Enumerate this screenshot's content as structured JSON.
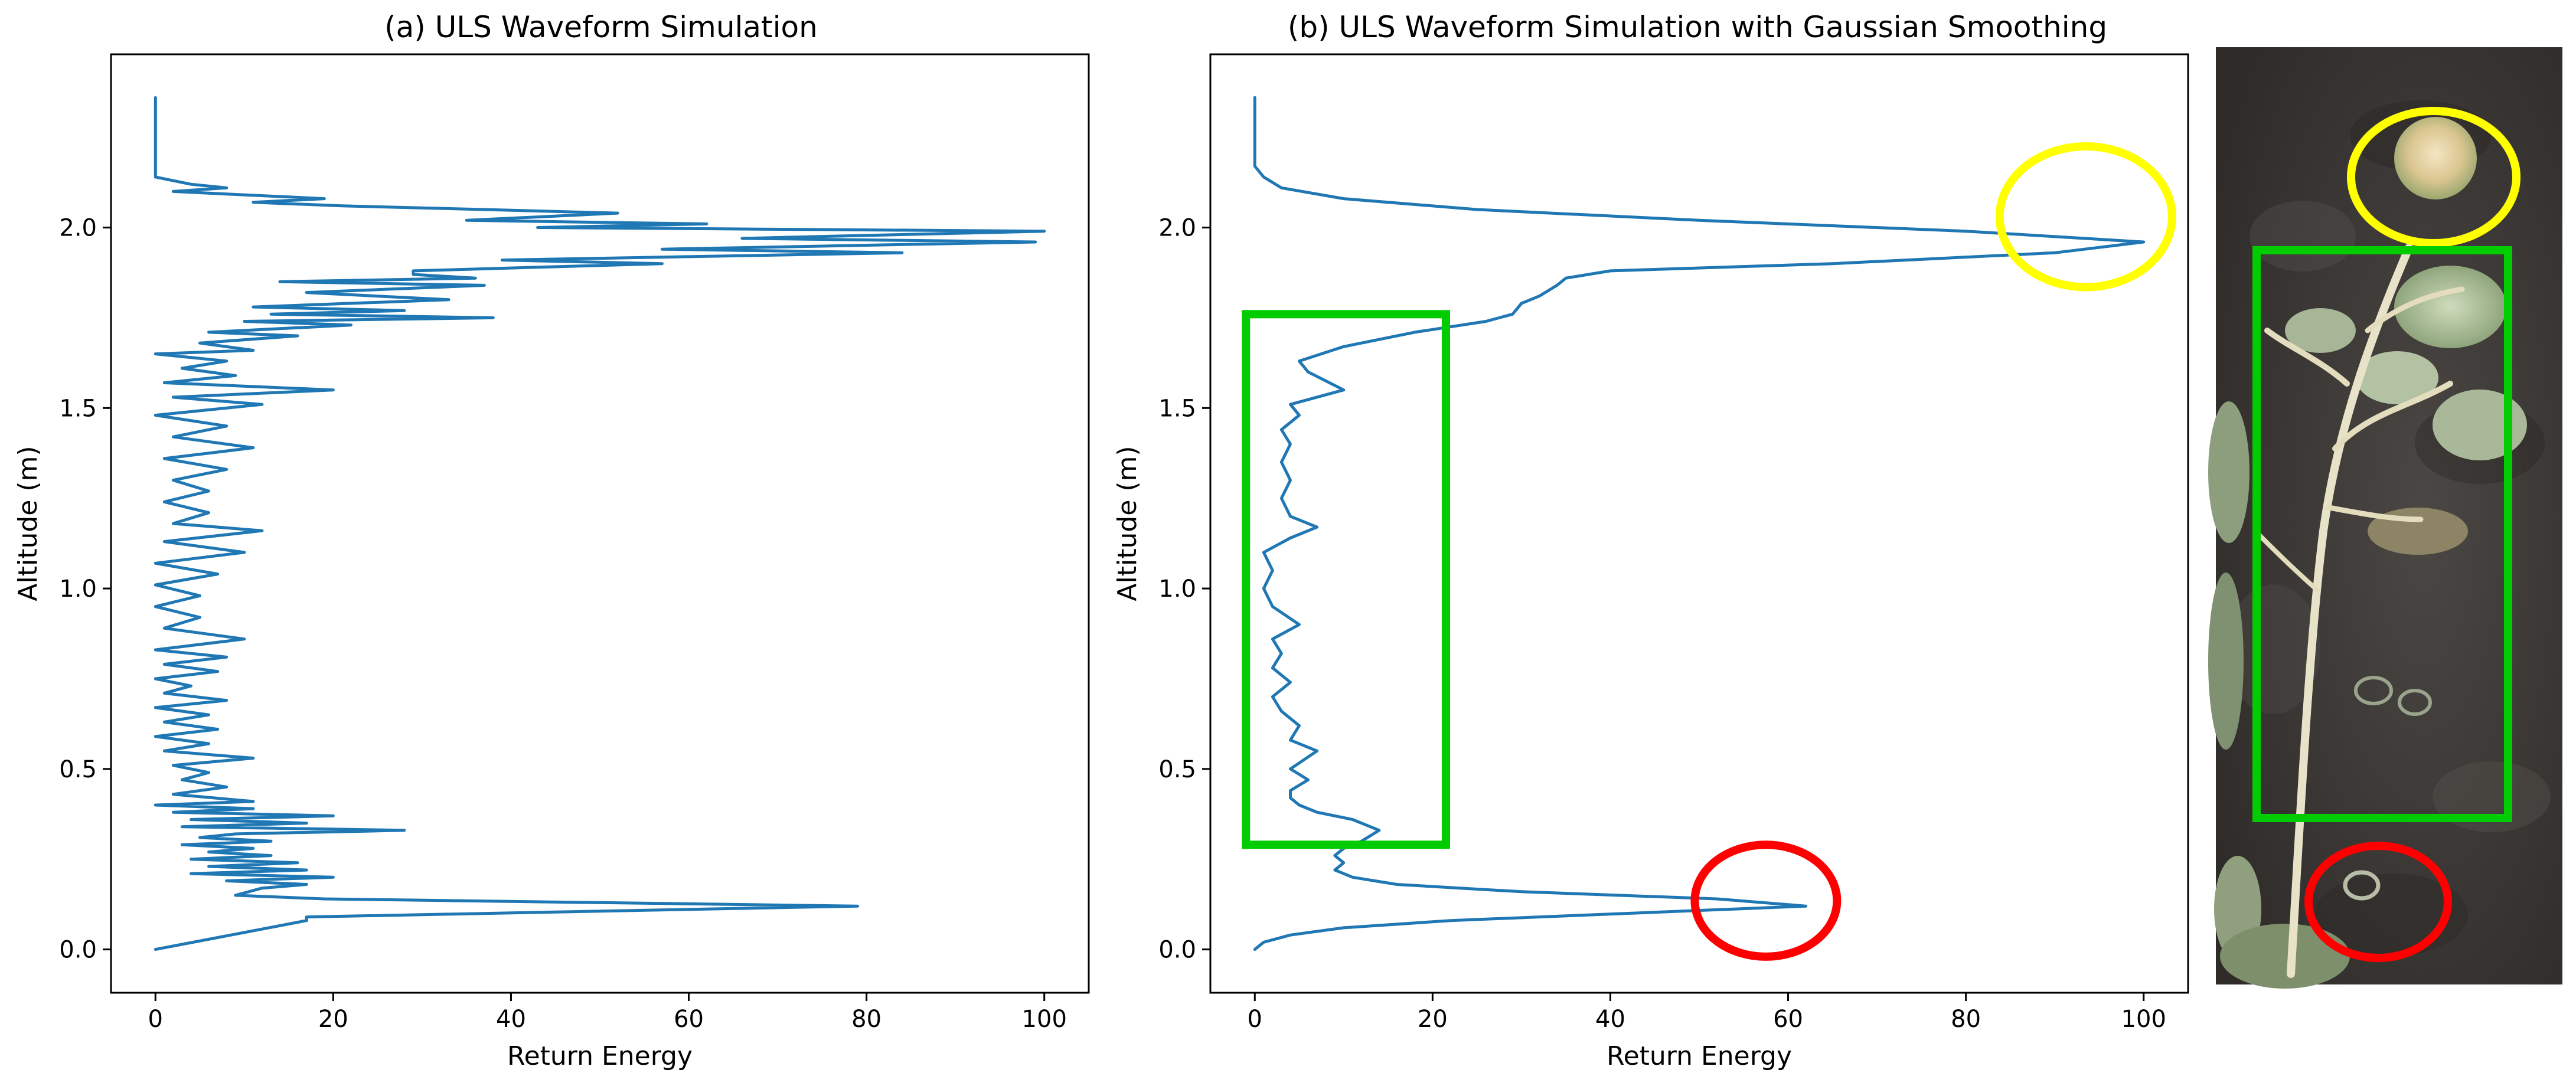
{
  "chart_data": [
    {
      "type": "line",
      "title": "(a) ULS Waveform Simulation",
      "xlabel": "Return Energy",
      "ylabel": "Altitude (m)",
      "xlim": [
        -5,
        105
      ],
      "ylim": [
        -0.12,
        2.48
      ],
      "xticks": [
        0,
        20,
        40,
        60,
        80,
        100
      ],
      "yticks": [
        0.0,
        0.5,
        1.0,
        1.5,
        2.0
      ],
      "xtick_labels": [
        "0",
        "20",
        "40",
        "60",
        "80",
        "100"
      ],
      "ytick_labels": [
        "0.0",
        "0.5",
        "1.0",
        "1.5",
        "2.0"
      ],
      "grid": false,
      "series": [
        {
          "color": "#1f77b4",
          "points": [
            [
              0,
              0.0
            ],
            [
              17,
              0.08
            ],
            [
              17,
              0.09
            ],
            [
              79,
              0.12
            ],
            [
              19,
              0.14
            ],
            [
              9,
              0.15
            ],
            [
              12,
              0.17
            ],
            [
              17,
              0.18
            ],
            [
              8,
              0.19
            ],
            [
              20,
              0.2
            ],
            [
              4,
              0.21
            ],
            [
              17,
              0.22
            ],
            [
              6,
              0.23
            ],
            [
              16,
              0.24
            ],
            [
              4,
              0.25
            ],
            [
              13,
              0.26
            ],
            [
              6,
              0.27
            ],
            [
              11,
              0.28
            ],
            [
              3,
              0.29
            ],
            [
              13,
              0.3
            ],
            [
              5,
              0.31
            ],
            [
              9,
              0.32
            ],
            [
              28,
              0.33
            ],
            [
              3,
              0.34
            ],
            [
              17,
              0.35
            ],
            [
              4,
              0.36
            ],
            [
              20,
              0.37
            ],
            [
              2,
              0.38
            ],
            [
              11,
              0.39
            ],
            [
              0,
              0.4
            ],
            [
              11,
              0.41
            ],
            [
              2,
              0.43
            ],
            [
              8,
              0.45
            ],
            [
              3,
              0.47
            ],
            [
              6,
              0.49
            ],
            [
              2,
              0.51
            ],
            [
              11,
              0.53
            ],
            [
              1,
              0.55
            ],
            [
              6,
              0.57
            ],
            [
              0,
              0.59
            ],
            [
              7,
              0.61
            ],
            [
              1,
              0.63
            ],
            [
              6,
              0.65
            ],
            [
              0,
              0.67
            ],
            [
              8,
              0.69
            ],
            [
              1,
              0.71
            ],
            [
              4,
              0.73
            ],
            [
              0,
              0.75
            ],
            [
              7,
              0.77
            ],
            [
              1,
              0.79
            ],
            [
              8,
              0.81
            ],
            [
              0,
              0.83
            ],
            [
              10,
              0.86
            ],
            [
              1,
              0.89
            ],
            [
              5,
              0.92
            ],
            [
              0,
              0.95
            ],
            [
              5,
              0.98
            ],
            [
              0,
              1.01
            ],
            [
              7,
              1.04
            ],
            [
              0,
              1.07
            ],
            [
              10,
              1.1
            ],
            [
              1,
              1.13
            ],
            [
              12,
              1.16
            ],
            [
              2,
              1.18
            ],
            [
              6,
              1.21
            ],
            [
              1,
              1.24
            ],
            [
              6,
              1.27
            ],
            [
              2,
              1.3
            ],
            [
              8,
              1.33
            ],
            [
              1,
              1.36
            ],
            [
              11,
              1.39
            ],
            [
              2,
              1.42
            ],
            [
              8,
              1.45
            ],
            [
              0,
              1.48
            ],
            [
              12,
              1.51
            ],
            [
              2,
              1.53
            ],
            [
              20,
              1.55
            ],
            [
              1,
              1.57
            ],
            [
              9,
              1.59
            ],
            [
              3,
              1.61
            ],
            [
              8,
              1.63
            ],
            [
              0,
              1.65
            ],
            [
              11,
              1.66
            ],
            [
              5,
              1.68
            ],
            [
              16,
              1.7
            ],
            [
              6,
              1.71
            ],
            [
              22,
              1.73
            ],
            [
              10,
              1.74
            ],
            [
              38,
              1.75
            ],
            [
              13,
              1.76
            ],
            [
              28,
              1.77
            ],
            [
              11,
              1.78
            ],
            [
              33,
              1.8
            ],
            [
              17,
              1.82
            ],
            [
              37,
              1.84
            ],
            [
              14,
              1.85
            ],
            [
              36,
              1.86
            ],
            [
              29,
              1.87
            ],
            [
              29,
              1.88
            ],
            [
              57,
              1.9
            ],
            [
              39,
              1.91
            ],
            [
              84,
              1.93
            ],
            [
              57,
              1.94
            ],
            [
              99,
              1.96
            ],
            [
              66,
              1.97
            ],
            [
              100,
              1.99
            ],
            [
              43,
              2.0
            ],
            [
              62,
              2.01
            ],
            [
              35,
              2.02
            ],
            [
              52,
              2.04
            ],
            [
              37,
              2.05
            ],
            [
              21,
              2.06
            ],
            [
              11,
              2.07
            ],
            [
              19,
              2.08
            ],
            [
              2,
              2.1
            ],
            [
              8,
              2.11
            ],
            [
              4,
              2.12
            ],
            [
              0,
              2.14
            ],
            [
              0,
              2.36
            ]
          ]
        }
      ]
    },
    {
      "type": "line",
      "title": "(b) ULS Waveform Simulation with Gaussian Smoothing",
      "xlabel": "Return Energy",
      "ylabel": "Altitude (m)",
      "xlim": [
        -5,
        105
      ],
      "ylim": [
        -0.12,
        2.48
      ],
      "xticks": [
        0,
        20,
        40,
        60,
        80,
        100
      ],
      "yticks": [
        0.0,
        0.5,
        1.0,
        1.5,
        2.0
      ],
      "xtick_labels": [
        "0",
        "20",
        "40",
        "60",
        "80",
        "100"
      ],
      "ytick_labels": [
        "0.0",
        "0.5",
        "1.0",
        "1.5",
        "2.0"
      ],
      "grid": false,
      "annotations": [
        {
          "shape": "rectangle",
          "color": "#00cc00",
          "x": [
            -1,
            21.5
          ],
          "y": [
            0.29,
            1.76
          ]
        },
        {
          "shape": "ellipse",
          "color": "#ff0000",
          "cx": 57.5,
          "cy": 0.135,
          "rx": 8,
          "ry": 0.155
        },
        {
          "shape": "ellipse",
          "color": "#ffff00",
          "cx": 93.5,
          "cy": 2.03,
          "rx": 9.7,
          "ry": 0.195
        }
      ],
      "series": [
        {
          "color": "#1f77b4",
          "points": [
            [
              0,
              0.0
            ],
            [
              1,
              0.02
            ],
            [
              4,
              0.04
            ],
            [
              10,
              0.06
            ],
            [
              22,
              0.08
            ],
            [
              42,
              0.1
            ],
            [
              62,
              0.12
            ],
            [
              52,
              0.14
            ],
            [
              30,
              0.16
            ],
            [
              16,
              0.18
            ],
            [
              11,
              0.2
            ],
            [
              9,
              0.22
            ],
            [
              10,
              0.24
            ],
            [
              9,
              0.26
            ],
            [
              10,
              0.28
            ],
            [
              12,
              0.3
            ],
            [
              14,
              0.33
            ],
            [
              11,
              0.36
            ],
            [
              7,
              0.38
            ],
            [
              5,
              0.4
            ],
            [
              4,
              0.42
            ],
            [
              4,
              0.44
            ],
            [
              6,
              0.47
            ],
            [
              4,
              0.5
            ],
            [
              7,
              0.55
            ],
            [
              4,
              0.58
            ],
            [
              5,
              0.62
            ],
            [
              3,
              0.66
            ],
            [
              2,
              0.7
            ],
            [
              4,
              0.74
            ],
            [
              2,
              0.78
            ],
            [
              3,
              0.82
            ],
            [
              2,
              0.86
            ],
            [
              5,
              0.9
            ],
            [
              2,
              0.95
            ],
            [
              1,
              1.0
            ],
            [
              2,
              1.05
            ],
            [
              1,
              1.1
            ],
            [
              4,
              1.14
            ],
            [
              7,
              1.17
            ],
            [
              4,
              1.2
            ],
            [
              3,
              1.25
            ],
            [
              4,
              1.3
            ],
            [
              3,
              1.35
            ],
            [
              4,
              1.4
            ],
            [
              3,
              1.44
            ],
            [
              5,
              1.48
            ],
            [
              4,
              1.51
            ],
            [
              10,
              1.55
            ],
            [
              6,
              1.6
            ],
            [
              5,
              1.63
            ],
            [
              10,
              1.67
            ],
            [
              18,
              1.71
            ],
            [
              26,
              1.74
            ],
            [
              29,
              1.76
            ],
            [
              30,
              1.79
            ],
            [
              32,
              1.81
            ],
            [
              34,
              1.84
            ],
            [
              35,
              1.86
            ],
            [
              40,
              1.88
            ],
            [
              65,
              1.9
            ],
            [
              90,
              1.93
            ],
            [
              100,
              1.96
            ],
            [
              80,
              1.99
            ],
            [
              50,
              2.02
            ],
            [
              25,
              2.05
            ],
            [
              10,
              2.08
            ],
            [
              3,
              2.11
            ],
            [
              1,
              2.14
            ],
            [
              0,
              2.17
            ],
            [
              0,
              2.36
            ]
          ]
        }
      ]
    }
  ],
  "photo": {
    "description_icon": "plant-photo",
    "annotations": [
      {
        "shape": "ellipse",
        "color": "#ffff00"
      },
      {
        "shape": "rectangle",
        "color": "#00cc00"
      },
      {
        "shape": "ellipse",
        "color": "#ff0000"
      }
    ]
  }
}
